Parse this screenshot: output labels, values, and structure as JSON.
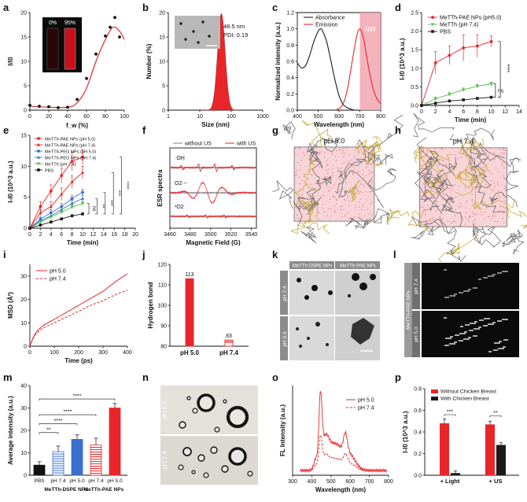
{
  "panels": {
    "a": {
      "letter": "a",
      "chart_data": {
        "type": "scatter",
        "title": "",
        "xlabel": "f_w (%)",
        "ylabel": "I/I0",
        "xlim": [
          0,
          100
        ],
        "ylim": [
          0,
          20
        ],
        "xticks": [
          0,
          20,
          40,
          60,
          80,
          100
        ],
        "yticks": [
          0,
          5,
          10,
          15,
          20
        ],
        "x": [
          0,
          10,
          20,
          30,
          40,
          50,
          60,
          70,
          80,
          85,
          90,
          95
        ],
        "y": [
          1.0,
          0.8,
          0.7,
          0.5,
          0.6,
          2.2,
          6.5,
          11.5,
          15.2,
          17.0,
          19.0,
          15.0
        ],
        "fit": [
          [
            0,
            0.8
          ],
          [
            20,
            0.6
          ],
          [
            40,
            0.6
          ],
          [
            50,
            1.5
          ],
          [
            60,
            4.5
          ],
          [
            70,
            10.0
          ],
          [
            80,
            14.5
          ],
          [
            88,
            17.0
          ],
          [
            95,
            16.2
          ],
          [
            100,
            14.5
          ]
        ],
        "inset_labels": [
          "0%",
          "95%"
        ]
      }
    },
    "b": {
      "letter": "b",
      "chart_data": {
        "type": "area",
        "xlabel": "Size (nm)",
        "ylabel": "Number (%)",
        "xscale": "log",
        "xlim": [
          1,
          1000
        ],
        "ylim": [
          0,
          20
        ],
        "xticks": [
          1,
          10,
          100,
          1000
        ],
        "yticks": [
          0,
          5,
          10,
          15,
          20
        ],
        "peak": 48.5,
        "peak_height": 19.8,
        "log_sigma": 0.12,
        "annotations": [
          "48.5 nm",
          "PDI: 0.19"
        ]
      }
    },
    "c": {
      "letter": "c",
      "chart_data": {
        "type": "line",
        "xlabel": "Wavelength (nm)",
        "ylabel": "Normalized intensity (a.u.)",
        "xlim": [
          400,
          800
        ],
        "ylim": [
          0,
          1.2
        ],
        "xticks": [
          400,
          500,
          600,
          700,
          800
        ],
        "yticks": [
          0.0,
          0.2,
          0.4,
          0.6,
          0.8,
          1.0,
          1.2
        ],
        "series": [
          {
            "name": "Absorbance",
            "x": [
              400,
              420,
              440,
              460,
              480,
              500,
              510,
              520,
              540,
              560,
              580,
              600,
              620,
              640,
              660,
              680,
              700
            ],
            "y": [
              0.58,
              0.52,
              0.55,
              0.68,
              0.85,
              0.97,
              1.0,
              0.98,
              0.85,
              0.62,
              0.38,
              0.18,
              0.07,
              0.03,
              0.01,
              0.0,
              0.0
            ]
          },
          {
            "name": "Emission",
            "x": [
              580,
              600,
              620,
              640,
              660,
              680,
              690,
              700,
              710,
              720,
              740,
              760,
              780,
              800
            ],
            "y": [
              0.0,
              0.02,
              0.08,
              0.25,
              0.55,
              0.85,
              0.96,
              1.0,
              0.95,
              0.85,
              0.55,
              0.3,
              0.15,
              0.08
            ]
          }
        ],
        "nir_band": [
          700,
          800
        ],
        "nir_label": "NIR"
      }
    },
    "d": {
      "letter": "d",
      "chart_data": {
        "type": "line",
        "xlabel": "Time (min)",
        "ylabel": "I-I0 (10^3 a.u.)",
        "xlim": [
          0,
          14
        ],
        "ylim": [
          0,
          2.5
        ],
        "xticks": [
          0,
          2,
          4,
          6,
          8,
          10,
          12,
          14
        ],
        "yticks": [
          0.0,
          0.5,
          1.0,
          1.5,
          2.0,
          2.5
        ],
        "x": [
          0,
          2,
          4,
          6,
          8,
          10
        ],
        "series": [
          {
            "name": "MeTTh-PAE NPs (pH5.0)",
            "y": [
              0.0,
              1.15,
              1.35,
              1.55,
              1.6,
              1.72
            ],
            "err": [
              0,
              0.3,
              0.25,
              0.35,
              0.3,
              0.15
            ]
          },
          {
            "name": "MeTTh (pH 7.4)",
            "y": [
              0.0,
              0.18,
              0.3,
              0.42,
              0.52,
              0.58
            ],
            "err": [
              0,
              0.05,
              0.05,
              0.05,
              0.05,
              0.05
            ]
          },
          {
            "name": "PBS",
            "y": [
              0.0,
              0.06,
              0.12,
              0.15,
              0.19,
              0.22
            ],
            "err": [
              0,
              0.02,
              0.02,
              0.02,
              0.02,
              0.02
            ]
          }
        ],
        "sig_labels": [
          "****",
          "ns"
        ]
      }
    },
    "e": {
      "letter": "e",
      "chart_data": {
        "type": "line",
        "xlabel": "Time (min)",
        "ylabel": "I-I0 (10^3 a.u.)",
        "xlim": [
          0,
          20
        ],
        "ylim": [
          0,
          15
        ],
        "xticks": [
          0,
          2,
          4,
          6,
          8,
          10,
          12,
          14,
          16,
          18,
          20
        ],
        "yticks": [
          0,
          5,
          10,
          15
        ],
        "x": [
          0,
          2,
          4,
          6,
          8,
          10
        ],
        "series": [
          {
            "name": "MeTTh-PAE NPs (pH 5.0)",
            "y": [
              0,
              3.5,
              6.0,
              8.5,
              10.8,
              11.5
            ],
            "err": [
              0,
              0.8,
              1.0,
              1.2,
              1.5,
              1.2
            ]
          },
          {
            "name": "MeTTh-PAE NPs (pH 7.4)",
            "y": [
              0,
              2.5,
              3.5,
              5.5,
              7.5,
              9.0
            ],
            "err": [
              0,
              0.5,
              0.8,
              1.0,
              1.0,
              1.0
            ]
          },
          {
            "name": "MeTTh-PEG NPs (pH 5.0)",
            "y": [
              0,
              1.5,
              2.5,
              3.5,
              4.8,
              5.8
            ],
            "err": [
              0,
              0.3,
              0.5,
              0.5,
              0.5,
              0.5
            ]
          },
          {
            "name": "MeTTh-PEG NPs (pH 7.4)",
            "y": [
              0,
              1.2,
              2.0,
              3.0,
              4.0,
              4.8
            ],
            "err": [
              0,
              0.3,
              0.4,
              0.4,
              0.5,
              0.5
            ]
          },
          {
            "name": "MeTTh (pH 7.4)",
            "y": [
              0,
              1.0,
              1.8,
              2.6,
              3.4,
              4.0
            ],
            "err": [
              0,
              0.2,
              0.3,
              0.3,
              0.3,
              0.3
            ]
          },
          {
            "name": "PBS",
            "y": [
              0,
              0.5,
              1.0,
              1.5,
              2.0,
              2.3
            ],
            "err": [
              0,
              0.1,
              0.1,
              0.1,
              0.1,
              0.1
            ]
          }
        ],
        "sig_labels": [
          "ns",
          "**",
          "***",
          "***",
          "****"
        ]
      }
    },
    "f": {
      "letter": "f",
      "chart_data": {
        "type": "line",
        "xlabel": "Magnetic Field (G)",
        "ylabel": "ESR spectra",
        "xlim": [
          3460,
          3545
        ],
        "xticks": [
          3460,
          3480,
          3500,
          3520,
          3540
        ],
        "series": [
          {
            "name": "without US"
          },
          {
            "name": "with US"
          }
        ],
        "species": [
          "·OH",
          "O2·−",
          "¹O2"
        ]
      }
    },
    "g": {
      "letter": "g",
      "label": "pH 5.0"
    },
    "h": {
      "letter": "h",
      "label": "pH 7.4"
    },
    "i": {
      "letter": "i",
      "chart_data": {
        "type": "line",
        "xlabel": "Time (ps)",
        "ylabel": "MSD (Å²)",
        "xlim": [
          0,
          400
        ],
        "ylim": [
          0,
          35
        ],
        "xticks": [
          0,
          100,
          200,
          300,
          400
        ],
        "yticks": [
          0,
          10,
          20,
          30
        ],
        "series": [
          {
            "name": "pH 5.0",
            "x": [
              0,
              20,
              50,
              100,
              150,
              200,
              250,
              300,
              350,
              400
            ],
            "y": [
              0,
              5,
              8.5,
              11.5,
              14.5,
              17.5,
              20.5,
              23.5,
              27.5,
              31
            ]
          },
          {
            "name": "pH 7.4",
            "x": [
              0,
              20,
              50,
              100,
              150,
              200,
              250,
              300,
              350,
              400
            ],
            "y": [
              0,
              4.5,
              7.5,
              10,
              12.5,
              15,
              17.5,
              19.5,
              22,
              24
            ]
          }
        ]
      }
    },
    "j": {
      "letter": "j",
      "chart_data": {
        "type": "bar",
        "xlabel": "",
        "ylabel": "Hydrogen bond",
        "categories": [
          "pH 5.0",
          "pH 7.4"
        ],
        "values": [
          113,
          83
        ],
        "ylim": [
          80,
          120
        ],
        "yticks": [
          80,
          90,
          100,
          110,
          120
        ]
      }
    },
    "k": {
      "letter": "k",
      "col_labels": [
        "MeTTh-DSPE NPs",
        "MeTTh-PAE NPs"
      ],
      "row_labels": [
        "pH 7.4",
        "pH 5.0"
      ]
    },
    "l": {
      "letter": "l",
      "side_label": "MeTTh-PAE NPs",
      "row_labels": [
        "pH 7.4",
        "pH 5.0"
      ]
    },
    "m": {
      "letter": "m",
      "chart_data": {
        "type": "bar",
        "ylabel": "Average intensity (a.u.)",
        "categories": [
          "PBS",
          "pH 7.4",
          "pH 5.0",
          "pH 7.4",
          "pH 5.0"
        ],
        "groups": [
          "MeTTh-DSPE NPs",
          "MeTTh-PAE NPs"
        ],
        "values": [
          4.5,
          10.5,
          16.0,
          13.5,
          30.0
        ],
        "err": [
          1.5,
          2.5,
          2.0,
          3.0,
          2.0
        ],
        "ylim": [
          0,
          40
        ],
        "yticks": [
          0,
          10,
          20,
          30,
          40
        ],
        "sig_labels": [
          "**",
          "****",
          "****",
          "****"
        ]
      }
    },
    "n": {
      "letter": "n",
      "row_labels": [
        "pH 5.0",
        "pH 7.4"
      ]
    },
    "o": {
      "letter": "o",
      "chart_data": {
        "type": "line",
        "xlabel": "Wavelength (nm)",
        "ylabel": "FL Intensity (a.u.)",
        "xlim": [
          300,
          800
        ],
        "xticks": [
          300,
          400,
          500,
          600,
          700,
          800
        ],
        "series": [
          {
            "name": "pH 5.0"
          },
          {
            "name": "pH 7.4"
          }
        ]
      }
    },
    "p": {
      "letter": "p",
      "chart_data": {
        "type": "bar",
        "ylabel": "I-I0 (10^3 a.u.)",
        "categories": [
          "+ Light",
          "+ US"
        ],
        "series": [
          {
            "name": "Without Chicken Breast",
            "values": [
              0.48,
              0.47
            ],
            "err": [
              0.04,
              0.03
            ]
          },
          {
            "name": "With Chicken Breast",
            "values": [
              0.02,
              0.28
            ],
            "err": [
              0.02,
              0.02
            ]
          }
        ],
        "ylim": [
          0,
          0.8
        ],
        "yticks": [
          0.0,
          0.2,
          0.4,
          0.6,
          0.8
        ],
        "sig_labels": [
          "***",
          "**"
        ]
      }
    }
  },
  "colors": {
    "red": "#e8262a",
    "black": "#1a1a1a",
    "green": "#4dbf3f",
    "blue": "#3a6fd0",
    "grey": "#808080",
    "pink": "#f2a5b0"
  }
}
